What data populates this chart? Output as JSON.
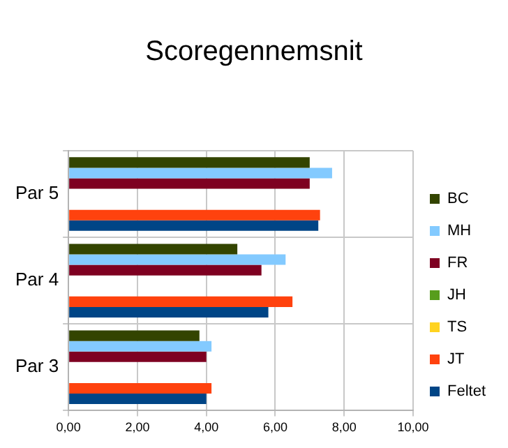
{
  "chart_data": {
    "type": "bar",
    "orientation": "horizontal",
    "title": "Scoregennemsnit",
    "categories": [
      "Par 5",
      "Par 4",
      "Par 3"
    ],
    "series": [
      {
        "name": "BC",
        "color": "#334400",
        "values": [
          7.0,
          4.9,
          3.8
        ]
      },
      {
        "name": "MH",
        "color": "#83caff",
        "values": [
          7.65,
          6.3,
          4.15
        ]
      },
      {
        "name": "FR",
        "color": "#7e0021",
        "values": [
          7.0,
          5.6,
          4.0
        ]
      },
      {
        "name": "JH",
        "color": "#579d1c",
        "values": [
          null,
          null,
          null
        ]
      },
      {
        "name": "TS",
        "color": "#ffd320",
        "values": [
          null,
          null,
          null
        ]
      },
      {
        "name": "JT",
        "color": "#ff420e",
        "values": [
          7.3,
          6.5,
          4.15
        ]
      },
      {
        "name": "Feltet",
        "color": "#004586",
        "values": [
          7.25,
          5.8,
          4.0
        ]
      }
    ],
    "xlim": [
      0,
      10
    ],
    "xticks": [
      {
        "value": 0,
        "label": "0,00"
      },
      {
        "value": 2,
        "label": "2,00"
      },
      {
        "value": 4,
        "label": "4,00"
      },
      {
        "value": 6,
        "label": "6,00"
      },
      {
        "value": 8,
        "label": "8,00"
      },
      {
        "value": 10,
        "label": "10,00"
      }
    ],
    "grid": true,
    "legend": "right"
  }
}
